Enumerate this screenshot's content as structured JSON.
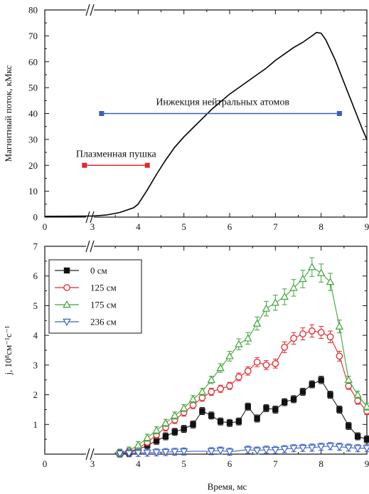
{
  "chart_data": [
    {
      "type": "line",
      "ylabel": "Магнитный поток, кМкс",
      "xlabel": "",
      "xlim": [
        0,
        9
      ],
      "ylim": [
        0,
        80
      ],
      "axis_break_between": [
        0,
        3
      ],
      "x_ticks": [
        0,
        3,
        4,
        5,
        6,
        7,
        8,
        9
      ],
      "y_ticks": [
        0,
        10,
        20,
        30,
        40,
        50,
        60,
        70,
        80
      ],
      "series": [
        {
          "name": "",
          "color": "#000000",
          "x": [
            0,
            3.0,
            3.3,
            3.6,
            3.9,
            4.0,
            4.2,
            4.4,
            4.6,
            4.8,
            5.0,
            5.2,
            5.4,
            5.6,
            5.8,
            6.0,
            6.2,
            6.4,
            6.6,
            6.8,
            7.0,
            7.2,
            7.4,
            7.6,
            7.8,
            7.9,
            8.0,
            8.1,
            8.3,
            8.5,
            8.7,
            8.9,
            9.0
          ],
          "y": [
            0.3,
            0.4,
            0.8,
            1.8,
            3.6,
            5.0,
            10.5,
            16.5,
            22,
            27,
            31,
            34.5,
            38,
            41.5,
            44.5,
            47.5,
            50,
            52.5,
            55,
            57.5,
            60.5,
            63,
            65.5,
            67.5,
            70,
            71.3,
            71,
            68.5,
            61,
            52,
            43,
            34,
            30
          ]
        }
      ],
      "annotations": [
        {
          "text": "Инжекция нейтральных атомов",
          "x_start": 3.2,
          "x_end": 8.4,
          "y": 40,
          "color": "#3a5fbf"
        },
        {
          "text": "Плазменная пушка",
          "x_start": 2.5,
          "x_end": 4.2,
          "y": 20,
          "color": "#e0282e"
        }
      ]
    },
    {
      "type": "scatter",
      "xlabel": "Время, мс",
      "ylabel": "j, 10⁸см⁻¹с⁻¹",
      "xlim": [
        0,
        9
      ],
      "ylim": [
        0,
        7
      ],
      "axis_break_between": [
        0,
        3
      ],
      "x_ticks": [
        0,
        3,
        4,
        5,
        6,
        7,
        8,
        9
      ],
      "y_ticks": [
        1,
        2,
        3,
        4,
        5,
        6,
        7
      ],
      "legend_position": "top-left",
      "series": [
        {
          "name": "0 см",
          "marker": "filled-square",
          "color": "#111111",
          "x": [
            3.6,
            3.8,
            4.0,
            4.2,
            4.4,
            4.6,
            4.8,
            5.0,
            5.2,
            5.4,
            5.6,
            5.8,
            6.0,
            6.2,
            6.4,
            6.6,
            6.8,
            7.0,
            7.2,
            7.4,
            7.6,
            7.8,
            8.0,
            8.2,
            8.4,
            8.6,
            8.8,
            9.0
          ],
          "y": [
            0.02,
            0.05,
            0.15,
            0.3,
            0.45,
            0.6,
            0.75,
            0.85,
            1.0,
            1.45,
            1.3,
            1.1,
            1.05,
            1.1,
            1.6,
            1.2,
            1.55,
            1.5,
            1.75,
            1.85,
            2.1,
            2.35,
            2.5,
            2.0,
            1.5,
            0.95,
            0.6,
            0.5
          ]
        },
        {
          "name": "125 см",
          "marker": "open-circle",
          "color": "#e0282e",
          "x": [
            3.6,
            3.8,
            4.0,
            4.2,
            4.4,
            4.6,
            4.8,
            5.0,
            5.2,
            5.4,
            5.6,
            5.8,
            6.0,
            6.2,
            6.4,
            6.6,
            6.8,
            7.0,
            7.2,
            7.4,
            7.6,
            7.8,
            8.0,
            8.2,
            8.4,
            8.6,
            8.8,
            9.0
          ],
          "y": [
            0.03,
            0.08,
            0.2,
            0.4,
            0.65,
            0.9,
            1.15,
            1.4,
            1.65,
            1.9,
            2.1,
            2.2,
            2.3,
            2.6,
            2.8,
            3.1,
            3.0,
            3.05,
            3.6,
            3.9,
            4.05,
            4.15,
            4.1,
            3.95,
            3.3,
            2.3,
            1.8,
            1.45
          ]
        },
        {
          "name": "175 см",
          "marker": "open-triangle-up",
          "color": "#3fa43a",
          "x": [
            3.6,
            3.8,
            4.0,
            4.2,
            4.4,
            4.6,
            4.8,
            5.0,
            5.2,
            5.4,
            5.6,
            5.8,
            6.0,
            6.2,
            6.4,
            6.6,
            6.8,
            7.0,
            7.2,
            7.4,
            7.6,
            7.8,
            8.0,
            8.2,
            8.4,
            8.6,
            8.8,
            9.0
          ],
          "y": [
            0.05,
            0.12,
            0.3,
            0.55,
            0.8,
            1.05,
            1.3,
            1.55,
            1.85,
            2.1,
            2.5,
            2.9,
            3.3,
            3.7,
            3.9,
            4.4,
            4.9,
            5.1,
            5.3,
            5.6,
            5.9,
            6.3,
            6.1,
            5.8,
            4.3,
            2.5,
            2.0,
            1.6
          ]
        },
        {
          "name": "236 см",
          "marker": "open-triangle-down",
          "color": "#3a5fbf",
          "x": [
            3.6,
            3.8,
            4.0,
            4.2,
            4.4,
            4.6,
            4.8,
            5.0,
            5.6,
            5.8,
            6.0,
            6.4,
            6.6,
            6.8,
            7.0,
            7.2,
            7.4,
            7.6,
            7.8,
            8.0,
            8.2,
            8.4,
            8.6,
            8.8,
            9.0
          ],
          "y": [
            0.02,
            0.03,
            0.04,
            0.05,
            0.06,
            0.07,
            0.08,
            0.09,
            0.1,
            0.12,
            0.08,
            0.15,
            0.12,
            0.15,
            0.14,
            0.17,
            0.2,
            0.21,
            0.22,
            0.25,
            0.27,
            0.25,
            0.22,
            0.2,
            0.2
          ]
        }
      ]
    }
  ]
}
